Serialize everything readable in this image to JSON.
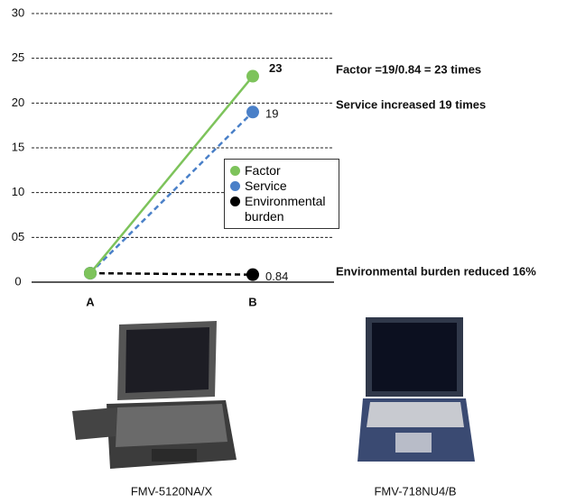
{
  "chart_data": {
    "type": "line",
    "categories": [
      "A",
      "B"
    ],
    "series": [
      {
        "name": "Factor",
        "color": "#7dc35b",
        "dash": false,
        "values": [
          1,
          23
        ],
        "value_labels": [
          null,
          "23"
        ]
      },
      {
        "name": "Service",
        "color": "#4a80c8",
        "dash": true,
        "values": [
          1,
          19
        ],
        "value_labels": [
          null,
          "19"
        ]
      },
      {
        "name": "Environmental burden",
        "color": "#000000",
        "dash": true,
        "values": [
          1,
          0.84
        ],
        "value_labels": [
          null,
          "0.84"
        ]
      }
    ],
    "ylim": [
      0,
      30
    ],
    "yticks": [
      0,
      {
        "value": 5,
        "label": "05"
      },
      10,
      15,
      20,
      25,
      30
    ],
    "grid": true,
    "annotations": [
      "Factor =19/0.84 = 23 times",
      "Service increased 19 times",
      "Environmental burden reduced 16%"
    ]
  },
  "photos": [
    {
      "caption": "FMV-5120NA/X"
    },
    {
      "caption": "FMV-718NU4/B"
    }
  ]
}
